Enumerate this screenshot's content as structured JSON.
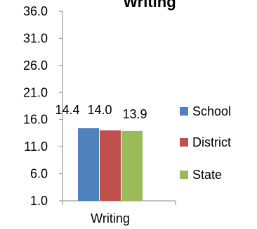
{
  "chart_data": {
    "type": "bar",
    "title": "Writing",
    "categories": [
      "Writing"
    ],
    "series": [
      {
        "name": "School",
        "values": [
          14.4
        ],
        "color": "#4f81bd"
      },
      {
        "name": "District",
        "values": [
          14.0
        ],
        "color": "#c0504d"
      },
      {
        "name": "State",
        "values": [
          13.9
        ],
        "color": "#9bbb59"
      }
    ],
    "y_ticks": [
      "1.0",
      "6.0",
      "11.0",
      "16.0",
      "21.0",
      "26.0",
      "31.0",
      "36.0"
    ],
    "ylim": [
      1,
      36
    ],
    "data_labels": [
      "14.4",
      "14.0",
      "13.9"
    ],
    "legend_position": "right",
    "grid": false,
    "axis_color": "#868686"
  }
}
